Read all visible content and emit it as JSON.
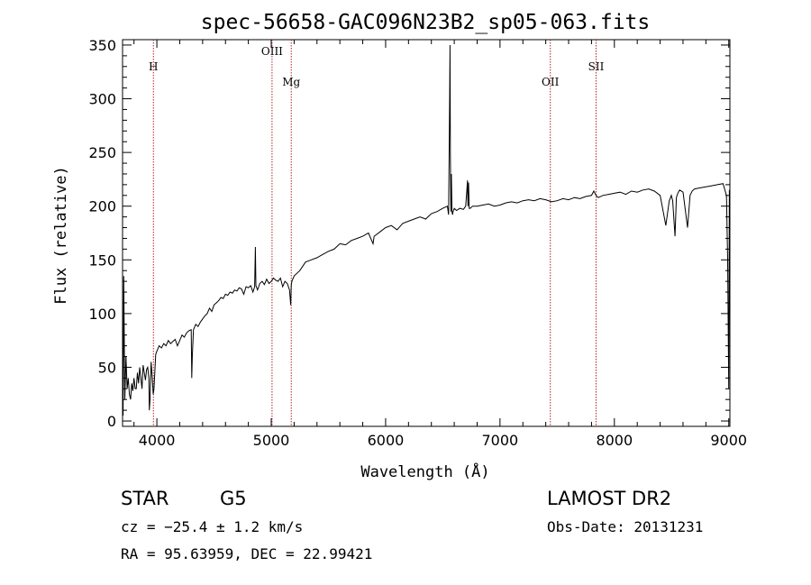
{
  "chart_data": {
    "type": "line",
    "title": "spec-56658-GAC096N23B2_sp05-063.fits",
    "xlabel": "Wavelength (Å)",
    "ylabel": "Flux (relative)",
    "xlim": [
      3700,
      9010
    ],
    "ylim": [
      -5,
      355
    ],
    "xticks": [
      4000,
      5000,
      6000,
      7000,
      8000,
      9000
    ],
    "yticks": [
      0,
      50,
      100,
      150,
      200,
      250,
      300,
      350
    ],
    "grid": false,
    "line_markers": [
      {
        "label": "H",
        "x": 3970
      },
      {
        "label": "OIII",
        "x": 5007
      },
      {
        "label": "Mg",
        "x": 5175
      },
      {
        "label": "OII",
        "x": 7440
      },
      {
        "label": "SII",
        "x": 7840
      }
    ],
    "marker_color": "#b22222",
    "series": [
      {
        "color": "#000000",
        "x": [
          3705,
          3710,
          3720,
          3730,
          3740,
          3750,
          3760,
          3770,
          3780,
          3790,
          3800,
          3810,
          3820,
          3830,
          3840,
          3850,
          3860,
          3870,
          3880,
          3890,
          3900,
          3910,
          3920,
          3930,
          3934,
          3940,
          3950,
          3960,
          3968,
          3975,
          3990,
          4000,
          4020,
          4040,
          4060,
          4080,
          4100,
          4120,
          4140,
          4160,
          4180,
          4200,
          4220,
          4240,
          4260,
          4280,
          4300,
          4305,
          4310,
          4320,
          4340,
          4360,
          4380,
          4400,
          4420,
          4440,
          4460,
          4480,
          4500,
          4520,
          4540,
          4560,
          4580,
          4600,
          4620,
          4640,
          4660,
          4680,
          4700,
          4720,
          4740,
          4760,
          4780,
          4800,
          4820,
          4840,
          4855,
          4861,
          4866,
          4880,
          4900,
          4920,
          4940,
          4960,
          4980,
          5000,
          5020,
          5040,
          5060,
          5080,
          5100,
          5120,
          5140,
          5160,
          5170,
          5175,
          5180,
          5200,
          5250,
          5300,
          5350,
          5400,
          5450,
          5500,
          5550,
          5600,
          5650,
          5700,
          5750,
          5800,
          5850,
          5890,
          5900,
          5950,
          6000,
          6050,
          6100,
          6150,
          6200,
          6250,
          6300,
          6350,
          6400,
          6450,
          6500,
          6520,
          6540,
          6550,
          6555,
          6560,
          6563,
          6566,
          6570,
          6575,
          6580,
          6585,
          6590,
          6600,
          6620,
          6650,
          6680,
          6700,
          6710,
          6716,
          6720,
          6725,
          6731,
          6740,
          6760,
          6800,
          6850,
          6900,
          6950,
          7000,
          7050,
          7100,
          7150,
          7200,
          7250,
          7300,
          7350,
          7400,
          7450,
          7500,
          7550,
          7600,
          7650,
          7700,
          7750,
          7800,
          7820,
          7840,
          7860,
          7900,
          7950,
          8000,
          8050,
          8100,
          8150,
          8200,
          8250,
          8300,
          8350,
          8400,
          8450,
          8480,
          8498,
          8510,
          8530,
          8542,
          8555,
          8570,
          8600,
          8640,
          8662,
          8680,
          8700,
          8750,
          8800,
          8850,
          8900,
          8950,
          8980,
          8990,
          9000,
          9005
        ],
        "y": [
          5,
          135,
          20,
          60,
          30,
          40,
          25,
          20,
          35,
          28,
          40,
          30,
          30,
          45,
          35,
          50,
          40,
          30,
          52,
          45,
          38,
          48,
          50,
          40,
          10,
          20,
          55,
          40,
          25,
          30,
          62,
          65,
          70,
          68,
          72,
          70,
          75,
          72,
          74,
          76,
          70,
          75,
          80,
          78,
          82,
          84,
          85,
          40,
          60,
          85,
          90,
          88,
          92,
          95,
          98,
          100,
          105,
          102,
          108,
          110,
          112,
          115,
          114,
          118,
          117,
          120,
          119,
          122,
          121,
          124,
          123,
          118,
          125,
          124,
          126,
          120,
          125,
          162,
          126,
          122,
          128,
          130,
          127,
          132,
          128,
          130,
          133,
          131,
          130,
          133,
          125,
          130,
          128,
          122,
          108,
          126,
          130,
          135,
          140,
          148,
          150,
          152,
          155,
          158,
          160,
          165,
          164,
          168,
          170,
          172,
          175,
          165,
          172,
          176,
          180,
          182,
          178,
          184,
          186,
          188,
          190,
          188,
          193,
          195,
          198,
          199,
          200,
          192,
          245,
          300,
          350,
          250,
          195,
          230,
          195,
          192,
          195,
          198,
          196,
          198,
          197,
          200,
          215,
          224,
          200,
          222,
          198,
          198,
          200,
          200,
          201,
          202,
          200,
          201,
          203,
          204,
          203,
          205,
          206,
          205,
          207,
          206,
          204,
          205,
          207,
          206,
          208,
          207,
          209,
          210,
          214,
          210,
          208,
          210,
          211,
          212,
          213,
          211,
          214,
          213,
          215,
          216,
          214,
          210,
          182,
          205,
          210,
          205,
          172,
          208,
          212,
          215,
          213,
          180,
          210,
          214,
          216,
          217,
          218,
          219,
          220,
          221,
          210,
          150,
          30,
          215
        ]
      }
    ]
  },
  "footer": {
    "object_class": "STAR",
    "subclass": "G5",
    "survey": "LAMOST DR2",
    "velocity": "cz = −25.4 ± 1.2 km/s",
    "obs_date": "Obs-Date: 20131231",
    "coords": "RA =  95.63959, DEC =  22.99421"
  }
}
